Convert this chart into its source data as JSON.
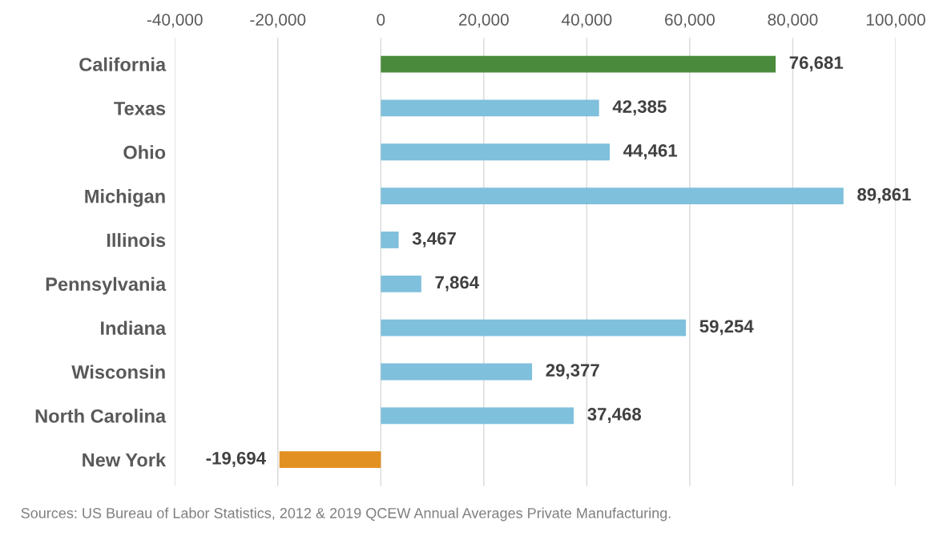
{
  "chart_data": {
    "type": "bar",
    "orientation": "horizontal",
    "categories": [
      "California",
      "Texas",
      "Ohio",
      "Michigan",
      "Illinois",
      "Pennsylvania",
      "Indiana",
      "Wisconsin",
      "North Carolina",
      "New York"
    ],
    "values": [
      76681,
      42385,
      44461,
      89861,
      3467,
      7864,
      59254,
      29377,
      37468,
      -19694
    ],
    "colors": [
      "#4a8a3c",
      "#7fc0dc",
      "#7fc0dc",
      "#7fc0dc",
      "#7fc0dc",
      "#7fc0dc",
      "#7fc0dc",
      "#7fc0dc",
      "#7fc0dc",
      "#e39022"
    ],
    "value_labels": [
      "76,681",
      "42,385",
      "44,461",
      "89,861",
      "3,467",
      "7,864",
      "59,254",
      "29,377",
      "37,468",
      "-19,694"
    ],
    "xlim": [
      -40000,
      100000
    ],
    "xticks": [
      {
        "value": -40000,
        "label": "-40,000"
      },
      {
        "value": -20000,
        "label": "-20,000"
      },
      {
        "value": 0,
        "label": "0"
      },
      {
        "value": 20000,
        "label": "20,000"
      },
      {
        "value": 40000,
        "label": "40,000"
      },
      {
        "value": 60000,
        "label": "60,000"
      },
      {
        "value": 80000,
        "label": "80,000"
      },
      {
        "value": 100000,
        "label": "100,000"
      }
    ],
    "grid": "x",
    "annotations": [
      "Sources: US Bureau of Labor Statistics, 2012 & 2019 QCEW Annual Averages Private Manufacturing."
    ]
  }
}
